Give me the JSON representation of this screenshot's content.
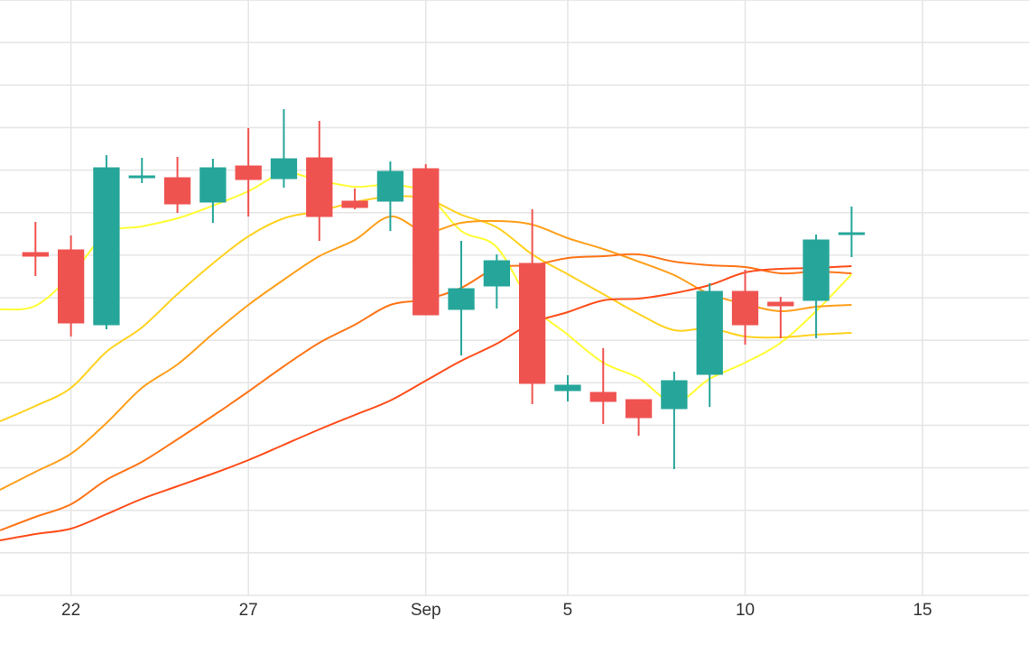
{
  "chart_data": {
    "type": "candlestick",
    "x_ticks": [
      "22",
      "27",
      "Sep",
      "5",
      "10",
      "15"
    ],
    "x_tick_dates": [
      "2019-08-22",
      "2019-08-27",
      "2019-09-01",
      "2019-09-05",
      "2019-09-10",
      "2019-09-15"
    ],
    "xlim": [
      "2019-08-20",
      "2019-09-18"
    ],
    "ylim": [
      0,
      660
    ],
    "grid": true,
    "legend": "none",
    "colors": {
      "up": "#26a69a",
      "down": "#ef5350",
      "grid": "#e6e6e6",
      "ma_lines": [
        "#ffff33",
        "#ffd21f",
        "#ff9f1a",
        "#ff7518",
        "#ff4d1a"
      ]
    },
    "candles": [
      {
        "date": "2019-08-21",
        "open": 380,
        "high": 414,
        "low": 354,
        "close": 376
      },
      {
        "date": "2019-08-22",
        "open": 383,
        "high": 399,
        "low": 287,
        "close": 302
      },
      {
        "date": "2019-08-23",
        "open": 300,
        "high": 488,
        "low": 295,
        "close": 474
      },
      {
        "date": "2019-08-24",
        "open": 465,
        "high": 485,
        "low": 457,
        "close": 465
      },
      {
        "date": "2019-08-25",
        "open": 463,
        "high": 486,
        "low": 424,
        "close": 434
      },
      {
        "date": "2019-08-26",
        "open": 436,
        "high": 484,
        "low": 413,
        "close": 474
      },
      {
        "date": "2019-08-27",
        "open": 476,
        "high": 518,
        "low": 420,
        "close": 461
      },
      {
        "date": "2019-08-28",
        "open": 462,
        "high": 539,
        "low": 452,
        "close": 484
      },
      {
        "date": "2019-08-29",
        "open": 485,
        "high": 526,
        "low": 393,
        "close": 420
      },
      {
        "date": "2019-08-30",
        "open": 437,
        "high": 451,
        "low": 428,
        "close": 430
      },
      {
        "date": "2019-08-31",
        "open": 437,
        "high": 481,
        "low": 404,
        "close": 470
      },
      {
        "date": "2019-09-01",
        "open": 473,
        "high": 478,
        "low": 311,
        "close": 311
      },
      {
        "date": "2019-09-02",
        "open": 317,
        "high": 393,
        "low": 266,
        "close": 340
      },
      {
        "date": "2019-09-03",
        "open": 343,
        "high": 378,
        "low": 318,
        "close": 371
      },
      {
        "date": "2019-09-04",
        "open": 368,
        "high": 428,
        "low": 212,
        "close": 235
      },
      {
        "date": "2019-09-05",
        "open": 227,
        "high": 244,
        "low": 215,
        "close": 233
      },
      {
        "date": "2019-09-06",
        "open": 225,
        "high": 274,
        "low": 190,
        "close": 215
      },
      {
        "date": "2019-09-07",
        "open": 217,
        "high": 217,
        "low": 177,
        "close": 197
      },
      {
        "date": "2019-09-08",
        "open": 207,
        "high": 248,
        "low": 140,
        "close": 238
      },
      {
        "date": "2019-09-09",
        "open": 245,
        "high": 346,
        "low": 209,
        "close": 337
      },
      {
        "date": "2019-09-10",
        "open": 337,
        "high": 361,
        "low": 278,
        "close": 300
      },
      {
        "date": "2019-09-11",
        "open": 325,
        "high": 331,
        "low": 285,
        "close": 321
      },
      {
        "date": "2019-09-12",
        "open": 327,
        "high": 400,
        "low": 285,
        "close": 394
      },
      {
        "date": "2019-09-13",
        "open": 401,
        "high": 431,
        "low": 375,
        "close": 402
      }
    ],
    "moving_averages": [
      {
        "points": [
          [
            "2019-08-20",
            317
          ],
          [
            "2019-08-21",
            321
          ],
          [
            "2019-08-22",
            355
          ],
          [
            "2019-08-23",
            401
          ],
          [
            "2019-08-24",
            409
          ],
          [
            "2019-08-25",
            418
          ],
          [
            "2019-08-26",
            432
          ],
          [
            "2019-08-27",
            448
          ],
          [
            "2019-08-28",
            468
          ],
          [
            "2019-08-29",
            460
          ],
          [
            "2019-08-30",
            453
          ],
          [
            "2019-08-31",
            455
          ],
          [
            "2019-09-01",
            446
          ],
          [
            "2019-09-02",
            404
          ],
          [
            "2019-09-03",
            386
          ],
          [
            "2019-09-04",
            322
          ],
          [
            "2019-09-05",
            289
          ],
          [
            "2019-09-06",
            258
          ],
          [
            "2019-09-07",
            241
          ],
          [
            "2019-09-08",
            214
          ],
          [
            "2019-09-09",
            240
          ],
          [
            "2019-09-10",
            258
          ],
          [
            "2019-09-11",
            280
          ],
          [
            "2019-09-12",
            315
          ],
          [
            "2019-09-13",
            356
          ]
        ]
      },
      {
        "points": [
          [
            "2019-08-20",
            193
          ],
          [
            "2019-08-21",
            210
          ],
          [
            "2019-08-22",
            230
          ],
          [
            "2019-08-23",
            270
          ],
          [
            "2019-08-24",
            297
          ],
          [
            "2019-08-25",
            334
          ],
          [
            "2019-08-26",
            368
          ],
          [
            "2019-08-27",
            398
          ],
          [
            "2019-08-28",
            418
          ],
          [
            "2019-08-29",
            426
          ],
          [
            "2019-08-30",
            436
          ],
          [
            "2019-08-31",
            442
          ],
          [
            "2019-09-01",
            440
          ],
          [
            "2019-09-02",
            422
          ],
          [
            "2019-09-03",
            408
          ],
          [
            "2019-09-04",
            378
          ],
          [
            "2019-09-05",
            356
          ],
          [
            "2019-09-06",
            334
          ],
          [
            "2019-09-07",
            312
          ],
          [
            "2019-09-08",
            294
          ],
          [
            "2019-09-09",
            296
          ],
          [
            "2019-09-10",
            287
          ],
          [
            "2019-09-11",
            286
          ],
          [
            "2019-09-12",
            289
          ],
          [
            "2019-09-13",
            291
          ]
        ]
      },
      {
        "points": [
          [
            "2019-08-20",
            117
          ],
          [
            "2019-08-21",
            137
          ],
          [
            "2019-08-22",
            157
          ],
          [
            "2019-08-23",
            191
          ],
          [
            "2019-08-24",
            230
          ],
          [
            "2019-08-25",
            256
          ],
          [
            "2019-08-26",
            290
          ],
          [
            "2019-08-27",
            322
          ],
          [
            "2019-08-28",
            350
          ],
          [
            "2019-08-29",
            376
          ],
          [
            "2019-08-30",
            394
          ],
          [
            "2019-08-31",
            420
          ],
          [
            "2019-09-01",
            403
          ],
          [
            "2019-09-02",
            413
          ],
          [
            "2019-09-03",
            415
          ],
          [
            "2019-09-04",
            411
          ],
          [
            "2019-09-05",
            396
          ],
          [
            "2019-09-06",
            384
          ],
          [
            "2019-09-07",
            370
          ],
          [
            "2019-09-08",
            355
          ],
          [
            "2019-09-09",
            334
          ],
          [
            "2019-09-10",
            323
          ],
          [
            "2019-09-11",
            315
          ],
          [
            "2019-09-12",
            320
          ],
          [
            "2019-09-13",
            322
          ]
        ]
      },
      {
        "points": [
          [
            "2019-08-20",
            72
          ],
          [
            "2019-08-21",
            87
          ],
          [
            "2019-08-22",
            101
          ],
          [
            "2019-08-23",
            128
          ],
          [
            "2019-08-24",
            148
          ],
          [
            "2019-08-25",
            173
          ],
          [
            "2019-08-26",
            199
          ],
          [
            "2019-08-27",
            226
          ],
          [
            "2019-08-28",
            254
          ],
          [
            "2019-08-29",
            280
          ],
          [
            "2019-08-30",
            300
          ],
          [
            "2019-08-31",
            322
          ],
          [
            "2019-09-01",
            328
          ],
          [
            "2019-09-02",
            341
          ],
          [
            "2019-09-03",
            363
          ],
          [
            "2019-09-04",
            366
          ],
          [
            "2019-09-05",
            374
          ],
          [
            "2019-09-06",
            376
          ],
          [
            "2019-09-07",
            378
          ],
          [
            "2019-09-08",
            370
          ],
          [
            "2019-09-09",
            366
          ],
          [
            "2019-09-10",
            364
          ],
          [
            "2019-09-11",
            357
          ],
          [
            "2019-09-12",
            359
          ],
          [
            "2019-09-13",
            357
          ]
        ]
      },
      {
        "points": [
          [
            "2019-08-20",
            61
          ],
          [
            "2019-08-21",
            68
          ],
          [
            "2019-08-22",
            74
          ],
          [
            "2019-08-23",
            90
          ],
          [
            "2019-08-24",
            107
          ],
          [
            "2019-08-25",
            121
          ],
          [
            "2019-08-26",
            135
          ],
          [
            "2019-08-27",
            150
          ],
          [
            "2019-08-28",
            167
          ],
          [
            "2019-08-29",
            184
          ],
          [
            "2019-08-30",
            200
          ],
          [
            "2019-08-31",
            216
          ],
          [
            "2019-09-01",
            238
          ],
          [
            "2019-09-02",
            260
          ],
          [
            "2019-09-03",
            279
          ],
          [
            "2019-09-04",
            302
          ],
          [
            "2019-09-05",
            314
          ],
          [
            "2019-09-06",
            327
          ],
          [
            "2019-09-07",
            329
          ],
          [
            "2019-09-08",
            335
          ],
          [
            "2019-09-09",
            344
          ],
          [
            "2019-09-10",
            358
          ],
          [
            "2019-09-11",
            362
          ],
          [
            "2019-09-12",
            363
          ],
          [
            "2019-09-13",
            365
          ]
        ]
      }
    ]
  }
}
